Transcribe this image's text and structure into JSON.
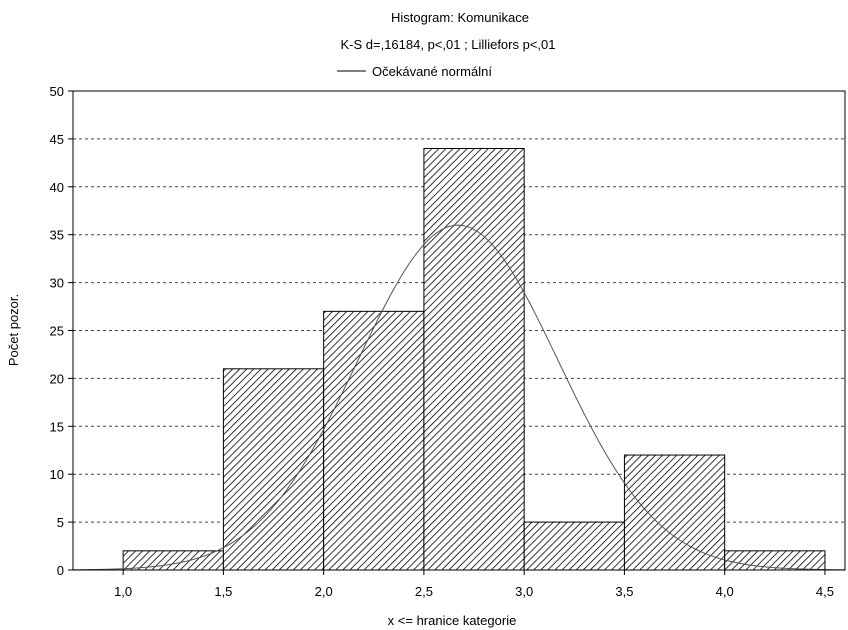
{
  "chart_data": {
    "type": "bar",
    "title": "Histogram: Komunikace",
    "subtitle": "K-S d=,16184, p<,01 ; Lilliefors p<,01",
    "legend": [
      {
        "label": "Očekávané normální",
        "kind": "line"
      }
    ],
    "xlabel": "x <= hranice kategorie",
    "ylabel": "Počet pozor.",
    "xlim": [
      0.75,
      4.6
    ],
    "ylim": [
      0,
      50
    ],
    "x_ticks": [
      1.0,
      1.5,
      2.0,
      2.5,
      3.0,
      3.5,
      4.0,
      4.5
    ],
    "x_tick_labels": [
      "1,0",
      "1,5",
      "2,0",
      "2,5",
      "3,0",
      "3,5",
      "4,0",
      "4,5"
    ],
    "y_ticks": [
      0,
      5,
      10,
      15,
      20,
      25,
      30,
      35,
      40,
      45,
      50
    ],
    "y_tick_labels": [
      "0",
      "5",
      "10",
      "15",
      "20",
      "25",
      "30",
      "35",
      "40",
      "45",
      "50"
    ],
    "grid": "horizontal dashed",
    "bins": [
      {
        "from": 1.0,
        "to": 1.5,
        "count": 2
      },
      {
        "from": 1.5,
        "to": 2.0,
        "count": 21
      },
      {
        "from": 2.0,
        "to": 2.5,
        "count": 27
      },
      {
        "from": 2.5,
        "to": 3.0,
        "count": 44
      },
      {
        "from": 3.0,
        "to": 3.5,
        "count": 5
      },
      {
        "from": 3.5,
        "to": 4.0,
        "count": 12
      },
      {
        "from": 4.0,
        "to": 4.5,
        "count": 2
      }
    ],
    "normal_curve": {
      "mean": 2.67,
      "sd": 0.5,
      "peak": 36
    }
  }
}
